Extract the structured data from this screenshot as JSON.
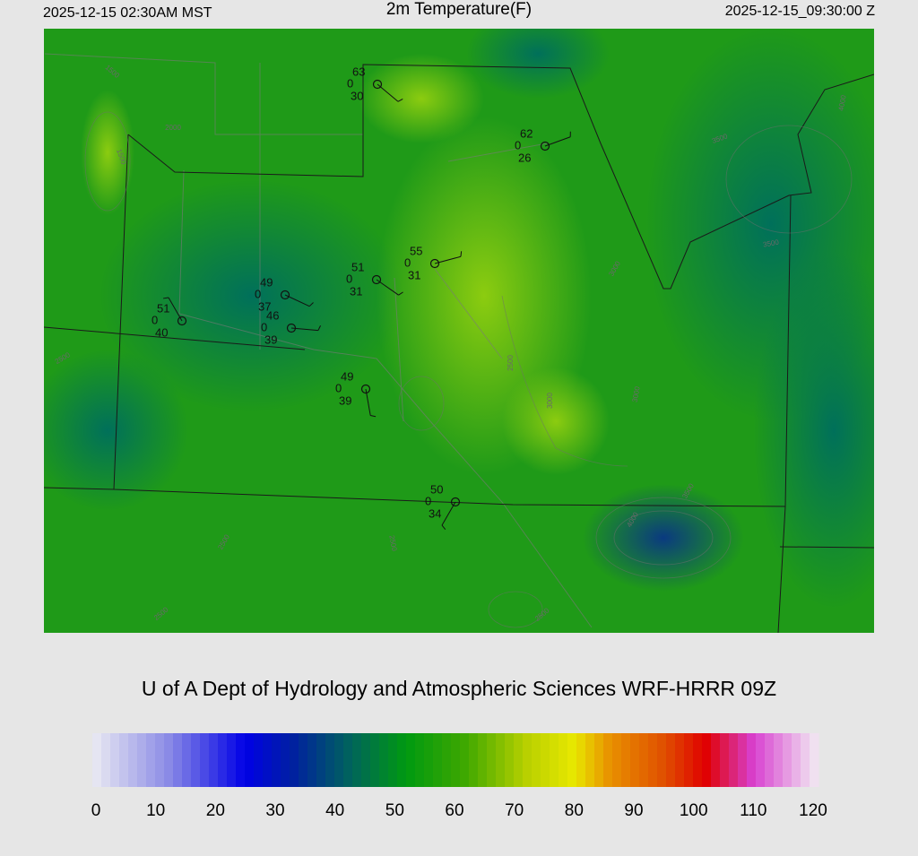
{
  "header": {
    "left": "2025-12-15 02:30AM MST",
    "title": "2m Temperature(F)",
    "right": "2025-12-15_09:30:00 Z"
  },
  "footer": {
    "credit": "U of A Dept of Hydrology and Atmospheric Sciences WRF-HRRR 09Z"
  },
  "stations": [
    {
      "temp": "63",
      "left": "0",
      "dew": "30"
    },
    {
      "temp": "62",
      "left": "0",
      "dew": "26"
    },
    {
      "temp": "55",
      "left": "0",
      "dew": "31"
    },
    {
      "temp": "51",
      "left": "0",
      "dew": "31"
    },
    {
      "temp": "49",
      "left": "0",
      "dew": "37"
    },
    {
      "temp": "51",
      "left": "0",
      "dew": "40"
    },
    {
      "temp": "46",
      "left": "0",
      "dew": "39"
    },
    {
      "temp": "49",
      "left": "0",
      "dew": "39"
    },
    {
      "temp": "50",
      "left": "0",
      "dew": "34"
    }
  ],
  "contour_labels": [
    "1500",
    "2000",
    "1500",
    "3000",
    "3500",
    "3500",
    "2500",
    "3000",
    "2500",
    "3000",
    "2500",
    "3500",
    "4000",
    "2500",
    "2500",
    "2500",
    "4000"
  ],
  "colorbar": {
    "lim": [
      0,
      120
    ],
    "ticks": [
      0,
      10,
      20,
      30,
      40,
      50,
      60,
      70,
      80,
      90,
      100,
      110,
      120
    ],
    "stops": [
      {
        "value": 0,
        "color": "#e6e6f2"
      },
      {
        "value": 12,
        "color": "#8c8ce6"
      },
      {
        "value": 25,
        "color": "#0000e6"
      },
      {
        "value": 33,
        "color": "#0020a0"
      },
      {
        "value": 42,
        "color": "#006060"
      },
      {
        "value": 52,
        "color": "#009a10"
      },
      {
        "value": 62,
        "color": "#40a800"
      },
      {
        "value": 72,
        "color": "#b8d000"
      },
      {
        "value": 80,
        "color": "#e8e800"
      },
      {
        "value": 86,
        "color": "#e89000"
      },
      {
        "value": 95,
        "color": "#e05000"
      },
      {
        "value": 102,
        "color": "#e00000"
      },
      {
        "value": 110,
        "color": "#d840d0"
      },
      {
        "value": 120,
        "color": "#f0e0f0"
      }
    ]
  }
}
